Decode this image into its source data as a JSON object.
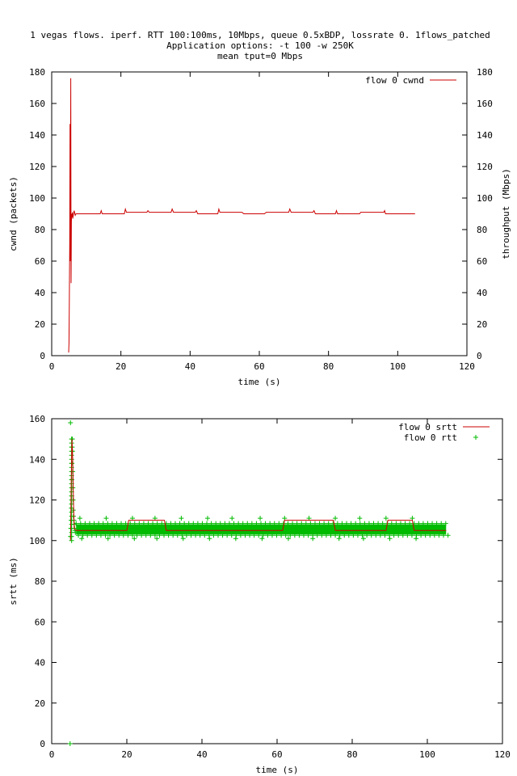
{
  "header": {
    "title_line1": "1 vegas flows. iperf. RTT 100:100ms, 10Mbps, queue 0.5xBDP, lossrate 0. 1flows_patched",
    "title_line2": "Application options: -t 100 -w 250K",
    "title_line3": "mean tput=0 Mbps"
  },
  "colors": {
    "cwnd": "#cc0000",
    "srtt": "#cc0000",
    "rtt": "#00bb00",
    "axis": "#000000"
  },
  "chart_data": [
    {
      "type": "line",
      "xlabel": "time (s)",
      "ylabel": "cwnd (packets)",
      "y2label": "throughput (Mbps)",
      "xlim": [
        0,
        120
      ],
      "ylim": [
        0,
        180
      ],
      "y2lim": [
        0,
        180
      ],
      "xticks": [
        "0",
        "20",
        "40",
        "60",
        "80",
        "100",
        "120"
      ],
      "yticks": [
        "0",
        "20",
        "40",
        "60",
        "80",
        "100",
        "120",
        "140",
        "160",
        "180"
      ],
      "y2ticks": [
        "0",
        "20",
        "40",
        "60",
        "80",
        "100",
        "120",
        "140",
        "160",
        "180"
      ],
      "legend_position": "top-right",
      "series": [
        {
          "name": "flow 0 cwnd",
          "x": [
            4.9,
            5.0,
            5.1,
            5.2,
            5.3,
            5.4,
            5.5,
            5.6,
            5.7,
            5.8,
            5.9,
            6.0,
            6.1,
            6.3,
            6.5,
            6.8,
            7.0,
            7.3,
            8.0,
            14.0,
            14.3,
            14.6,
            15.0,
            21.0,
            21.3,
            21.6,
            22.0,
            27.5,
            27.8,
            28.2,
            34.5,
            34.8,
            35.2,
            41.5,
            41.8,
            42.2,
            48.0,
            48.3,
            48.6,
            55.0,
            55.5,
            61.5,
            62.0,
            68.5,
            68.8,
            69.2,
            75.5,
            75.8,
            76.2,
            82.0,
            82.3,
            82.6,
            89.0,
            89.3,
            96.0,
            96.2,
            96.5,
            105.0
          ],
          "y": [
            2,
            8,
            33,
            70,
            147,
            60,
            176,
            46,
            85,
            90,
            88,
            91,
            87,
            90,
            92,
            89,
            90,
            90,
            90,
            90,
            92,
            90,
            90,
            90,
            93,
            91,
            91,
            91,
            92,
            91,
            91,
            93,
            91,
            91,
            92,
            90,
            90,
            93,
            91,
            91,
            90,
            90,
            91,
            91,
            93,
            91,
            91,
            92,
            90,
            90,
            92,
            90,
            90,
            91,
            91,
            92,
            90,
            90
          ]
        }
      ]
    },
    {
      "type": "scatter",
      "xlabel": "time (s)",
      "ylabel": "srtt (ms)",
      "xlim": [
        0,
        120
      ],
      "ylim": [
        0,
        160
      ],
      "xticks": [
        "0",
        "20",
        "40",
        "60",
        "80",
        "100",
        "120"
      ],
      "yticks": [
        "0",
        "20",
        "40",
        "60",
        "80",
        "100",
        "120",
        "140",
        "160"
      ],
      "legend_position": "top-right",
      "series": [
        {
          "name": "flow 0 srtt",
          "style": "line",
          "x": [
            5.0,
            5.2,
            5.4,
            5.6,
            5.8,
            6.0,
            6.5,
            7.0,
            20.0,
            20.5,
            30.0,
            30.5,
            61.5,
            62.0,
            75.0,
            75.5,
            89.0,
            89.5,
            96.0,
            96.5,
            105.0
          ],
          "y": [
            100,
            130,
            150,
            140,
            118,
            106,
            105,
            105,
            105,
            110,
            110,
            105,
            105,
            110,
            110,
            105,
            105,
            110,
            110,
            105,
            105
          ]
        },
        {
          "name": "flow 0 rtt",
          "style": "points",
          "band_x": [
            6.5,
            105.0
          ],
          "band_y": [
            103,
            108
          ],
          "spike_x": [
            4.9,
            5.0,
            5.1,
            5.2,
            5.25,
            5.3,
            5.35,
            5.4,
            5.45,
            5.5,
            5.55,
            5.6,
            5.65,
            5.7,
            5.75,
            5.8,
            5.9,
            6.0,
            6.1,
            6.2,
            6.3
          ],
          "spike_y": [
            0,
            102,
            106,
            110,
            116,
            122,
            130,
            138,
            146,
            150,
            144,
            134,
            126,
            120,
            115,
            112,
            110,
            108,
            106,
            105,
            104
          ],
          "outlier_x": [
            5.0,
            7.5,
            8.0,
            14.5,
            15.0,
            21.5,
            22.0,
            27.5,
            28.0,
            34.5,
            35.0,
            41.5,
            42.0,
            48.0,
            49.0,
            55.5,
            56.0,
            62.0,
            63.0,
            68.5,
            69.5,
            75.5,
            76.5,
            82.0,
            83.0,
            89.0,
            90.0,
            96.0,
            97.0
          ],
          "outlier_y": [
            158,
            111,
            101,
            111,
            101,
            111,
            101,
            111,
            101,
            111,
            101,
            111,
            101,
            111,
            101,
            111,
            101,
            111,
            101,
            111,
            101,
            111,
            101,
            111,
            101,
            111,
            101,
            111,
            101
          ]
        }
      ]
    }
  ]
}
